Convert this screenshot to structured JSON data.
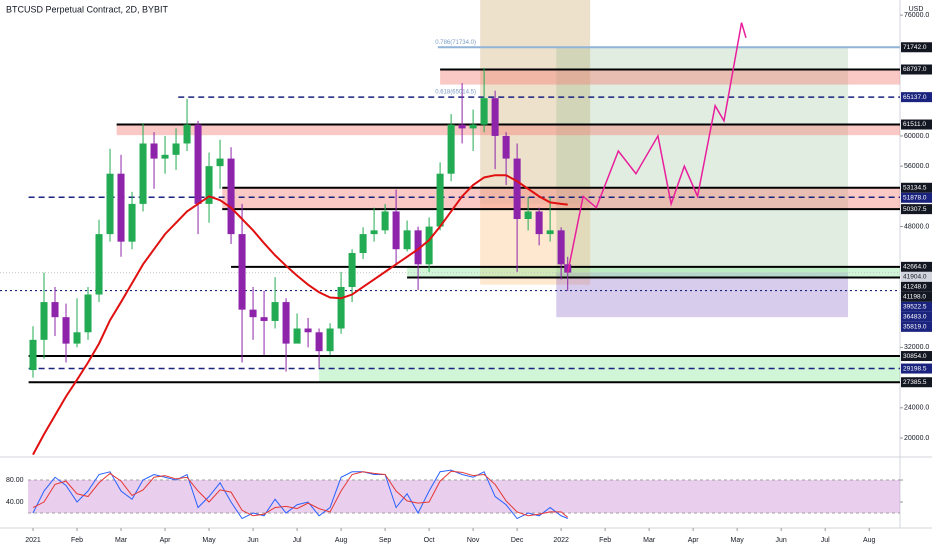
{
  "chart_data": [
    {
      "type": "candlestick",
      "title": "BTCUSD Perpetual Contract, 2D, BYBIT",
      "axis_unit": "USD",
      "up_color": "#22ab52",
      "down_color": "#8e24aa",
      "xlim": [
        -0.75,
        19.7
      ],
      "xticks": [
        {
          "value": 0,
          "label": "2021"
        },
        {
          "value": 1,
          "label": "Feb"
        },
        {
          "value": 2,
          "label": "Mar"
        },
        {
          "value": 3,
          "label": "Apr"
        },
        {
          "value": 4,
          "label": "May"
        },
        {
          "value": 5,
          "label": "Jun"
        },
        {
          "value": 6,
          "label": "Jul"
        },
        {
          "value": 7,
          "label": "Aug"
        },
        {
          "value": 8,
          "label": "Sep"
        },
        {
          "value": 9,
          "label": "Oct"
        },
        {
          "value": 10,
          "label": "Nov"
        },
        {
          "value": 11,
          "label": "Dec"
        },
        {
          "value": 12,
          "label": "2022"
        },
        {
          "value": 13,
          "label": "Feb"
        },
        {
          "value": 14,
          "label": "Mar"
        },
        {
          "value": 15,
          "label": "Apr"
        },
        {
          "value": 16,
          "label": "May"
        },
        {
          "value": 17,
          "label": "Jun"
        },
        {
          "value": 18,
          "label": "Jul"
        },
        {
          "value": 19,
          "label": "Aug"
        }
      ],
      "ylim": [
        17750,
        78000
      ],
      "yticks": [
        {
          "value": 76000,
          "label": "76000.0"
        },
        {
          "value": 60000,
          "label": "60000.0"
        },
        {
          "value": 56000,
          "label": "56000.0"
        },
        {
          "value": 48000,
          "label": "48000.0"
        },
        {
          "value": 32000,
          "label": "32000.0"
        },
        {
          "value": 24000,
          "label": "24000.0"
        },
        {
          "value": 20000,
          "label": "20000.0"
        }
      ],
      "x": [
        0,
        0.25,
        0.5,
        0.75,
        1,
        1.25,
        1.5,
        1.75,
        2,
        2.25,
        2.5,
        2.75,
        3,
        3.25,
        3.5,
        3.75,
        4,
        4.25,
        4.5,
        4.75,
        5,
        5.25,
        5.5,
        5.75,
        6,
        6.25,
        6.5,
        6.75,
        7,
        7.25,
        7.5,
        7.75,
        8,
        8.25,
        8.5,
        8.75,
        9,
        9.25,
        9.5,
        9.75,
        10,
        10.25,
        10.5,
        10.75,
        11,
        11.25,
        11.5,
        11.75,
        12,
        12.15
      ],
      "open": [
        29000,
        33000,
        38000,
        36000,
        32500,
        34000,
        39000,
        47000,
        55000,
        46000,
        51000,
        59000,
        57000,
        57500,
        59000,
        61500,
        51000,
        56000,
        57000,
        47000,
        37000,
        36000,
        35500,
        38000,
        32500,
        34500,
        34000,
        31500,
        34500,
        40000,
        44500,
        47000,
        47500,
        50000,
        45000,
        47500,
        43000,
        48000,
        55000,
        61500,
        61000,
        61500,
        65000,
        60000,
        57000,
        49000,
        50000,
        47000,
        47500,
        43000
      ],
      "high": [
        34800,
        41900,
        40000,
        37800,
        38500,
        40000,
        48900,
        58300,
        57500,
        52600,
        61700,
        60500,
        60000,
        61000,
        64900,
        62000,
        57800,
        59500,
        58500,
        51000,
        40000,
        39500,
        41300,
        38500,
        36500,
        35900,
        34500,
        35200,
        42000,
        45000,
        47900,
        50500,
        51000,
        52900,
        48800,
        48000,
        49200,
        56500,
        62900,
        67000,
        63500,
        69000,
        66000,
        60500,
        59000,
        51900,
        50500,
        51900,
        47900,
        44000
      ],
      "low": [
        28000,
        30500,
        33500,
        30000,
        32000,
        33000,
        38000,
        46000,
        44000,
        45000,
        50000,
        53000,
        55000,
        55500,
        58000,
        47000,
        48500,
        53000,
        45700,
        30000,
        33000,
        31000,
        34500,
        28800,
        32700,
        32000,
        29300,
        31000,
        33800,
        38000,
        43700,
        46000,
        47000,
        43000,
        44700,
        39600,
        42000,
        47500,
        54000,
        59000,
        58000,
        60500,
        55600,
        53500,
        42000,
        47500,
        45500,
        46000,
        41000,
        39500
      ],
      "close": [
        33000,
        38000,
        36000,
        32500,
        34000,
        39000,
        47000,
        55000,
        46000,
        51000,
        59000,
        57000,
        57500,
        59000,
        61500,
        51000,
        56000,
        57000,
        47000,
        37000,
        36000,
        35500,
        38000,
        32500,
        34500,
        34000,
        31500,
        34500,
        40000,
        44500,
        47000,
        47500,
        50000,
        45000,
        47500,
        43000,
        48000,
        55000,
        61500,
        61000,
        61500,
        65000,
        60000,
        57000,
        49000,
        50000,
        47000,
        47500,
        43000,
        41904
      ],
      "moving_average": {
        "color": "#e01010",
        "values": [
          17800,
          20500,
          23000,
          25500,
          27700,
          30000,
          32500,
          35600,
          38000,
          40500,
          43000,
          45000,
          47000,
          48500,
          50000,
          51000,
          52000,
          51500,
          50500,
          49000,
          47500,
          45800,
          44200,
          42800,
          41500,
          40300,
          39300,
          38600,
          38500,
          39000,
          40000,
          41000,
          42000,
          43000,
          44000,
          45000,
          46200,
          48000,
          50000,
          52000,
          53500,
          54500,
          54800,
          54800,
          54000,
          53000,
          52000,
          51200,
          51000,
          50900
        ]
      },
      "projection": {
        "color": "#e91e9c",
        "x": [
          12.15,
          12.5,
          12.8,
          13.3,
          13.7,
          14.2,
          14.5,
          14.8,
          15.1,
          15.5,
          15.7,
          16.1,
          16.2
        ],
        "values": [
          41904,
          52000,
          50500,
          58000,
          55000,
          60000,
          51000,
          56000,
          52000,
          64000,
          62000,
          75000,
          73000
        ]
      },
      "regions": [
        {
          "x": [
            10.16,
            12.66
          ],
          "y": [
            51000,
            78000
          ],
          "color": "rgba(205,170,110,0.35)"
        },
        {
          "x": [
            10.16,
            12.66
          ],
          "y": [
            40300,
            51000
          ],
          "color": "rgba(255,190,120,0.35)"
        },
        {
          "x": [
            11.89,
            18.52
          ],
          "y": [
            41904,
            71742
          ],
          "color": "rgba(120,175,120,0.22)"
        },
        {
          "x": [
            11.89,
            18.52
          ],
          "y": [
            36000,
            41904
          ],
          "color": "rgba(126,87,194,0.3)"
        }
      ],
      "zones": [
        {
          "x": [
            9.25,
            19.7
          ],
          "y": [
            66800,
            68797
          ],
          "color": "rgba(242,120,110,0.4)"
        },
        {
          "x": [
            1.9,
            19.7
          ],
          "y": [
            60100,
            61511
          ],
          "color": "rgba(242,120,110,0.4)"
        },
        {
          "x": [
            4.3,
            19.7
          ],
          "y": [
            50307.5,
            53134.5
          ],
          "color": "rgba(242,120,110,0.4)"
        },
        {
          "x": [
            8.5,
            19.7
          ],
          "y": [
            41248,
            42664
          ],
          "color": "rgba(120,230,140,0.35)"
        },
        {
          "x": [
            6.5,
            19.7
          ],
          "y": [
            27385.5,
            30854
          ],
          "color": "rgba(120,230,140,0.35)"
        }
      ],
      "levels": [
        {
          "value": 71742,
          "label": "71742.0",
          "color": "#131722",
          "style": "light",
          "start": 9.2
        },
        {
          "value": 68797,
          "label": "68797.0",
          "color": "#131722",
          "style": "solid",
          "start": 9.25
        },
        {
          "value": 65137,
          "label": "65137.0",
          "color": "#1a237e",
          "style": "dashed",
          "start": 3.3
        },
        {
          "value": 61511,
          "label": "61511.0",
          "color": "#131722",
          "style": "solid",
          "start": 1.9
        },
        {
          "value": 53134.5,
          "label": "53134.5",
          "color": "#131722",
          "style": "solid",
          "start": 4.3
        },
        {
          "value": 51878,
          "label": "51878.0",
          "color": "#1a237e",
          "style": "dashed",
          "start": -0.1
        },
        {
          "value": 50307.5,
          "label": "50307.5",
          "color": "#131722",
          "style": "solid",
          "start": 4.3
        },
        {
          "value": 42664,
          "label": "42664.0",
          "color": "#131722",
          "style": "solid",
          "start": 4.5
        },
        {
          "value": 41904,
          "label": "41904.0",
          "color": "#d1d4dc",
          "style": "faint",
          "start": -0.75
        },
        {
          "value": 41248,
          "label": "41248.0",
          "color": "#131722",
          "style": "solid",
          "start": 8.5
        },
        {
          "value": 41198,
          "label": "41198.0",
          "color": "#131722",
          "style": "none",
          "start": 8.5
        },
        {
          "value": 39522.5,
          "label": "39522.5",
          "color": "#1a237e",
          "style": "dotted",
          "start": -0.75
        },
        {
          "value": 36483,
          "label": "36483.0",
          "color": "#1a237e",
          "style": "none",
          "start": 11.9
        },
        {
          "value": 35819,
          "label": "35819.0",
          "color": "#1a237e",
          "style": "none",
          "start": 11.9
        },
        {
          "value": 30854,
          "label": "30854.0",
          "color": "#131722",
          "style": "solid",
          "start": -0.1
        },
        {
          "value": 29198.5,
          "label": "29198.5",
          "color": "#1a237e",
          "style": "dashed",
          "start": -0.1
        },
        {
          "value": 27385.5,
          "label": "27385.5",
          "color": "#131722",
          "style": "solid",
          "start": -0.1
        }
      ],
      "annotations": [
        {
          "text": "0.786(71734.0)",
          "x": 9.14,
          "y": 72400
        },
        {
          "text": "0.618(65014.5)",
          "x": 9.14,
          "y": 65800
        }
      ]
    },
    {
      "type": "line",
      "ylim": [
        -3.6,
        116.4
      ],
      "yticks": [
        {
          "value": 80,
          "label": "80.00"
        },
        {
          "value": 40,
          "label": "40.00"
        }
      ],
      "band": [
        20,
        80
      ],
      "band_color": "rgba(206,147,216,0.45)",
      "series": [
        {
          "color": "#2962ff",
          "values": [
            20,
            60,
            85,
            70,
            40,
            60,
            90,
            95,
            60,
            45,
            80,
            90,
            85,
            80,
            90,
            30,
            50,
            75,
            40,
            10,
            20,
            15,
            45,
            20,
            35,
            40,
            15,
            30,
            85,
            95,
            95,
            90,
            90,
            30,
            55,
            20,
            60,
            95,
            98,
            90,
            85,
            95,
            50,
            35,
            10,
            20,
            15,
            30,
            15,
            10
          ]
        },
        {
          "color": "#e53935",
          "values": [
            30,
            40,
            72,
            78,
            55,
            50,
            75,
            92,
            78,
            52,
            62,
            85,
            88,
            82,
            85,
            60,
            40,
            62,
            58,
            25,
            15,
            18,
            30,
            32,
            28,
            38,
            28,
            22,
            60,
            90,
            95,
            92,
            90,
            60,
            42,
            38,
            40,
            78,
            96,
            94,
            88,
            90,
            72,
            42,
            22,
            15,
            18,
            22,
            22,
            12
          ]
        }
      ]
    }
  ]
}
